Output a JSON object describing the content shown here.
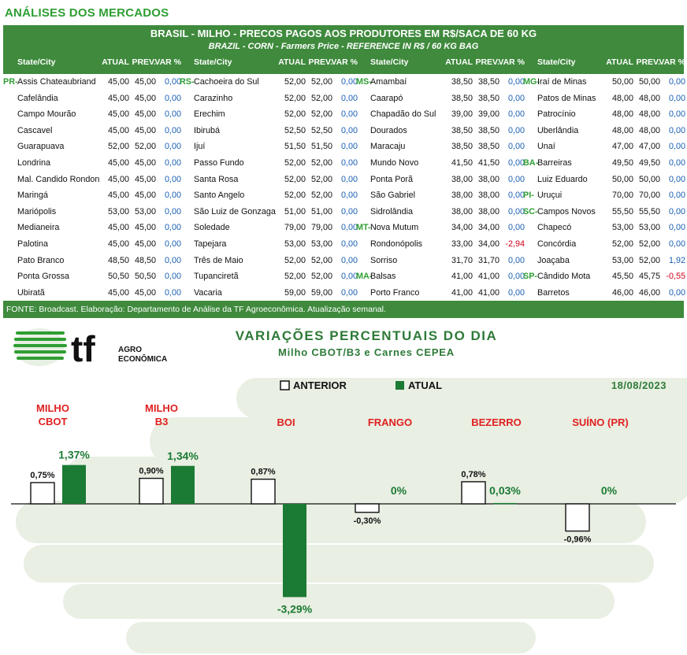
{
  "section_title": "ANÁLISES DOS MERCADOS",
  "table": {
    "title": "BRASIL - MILHO - PRECOS PAGOS AOS PRODUTORES EM R$/SACA DE 60 KG",
    "subtitle": "BRAZIL - CORN - Farmers Price - REFERENCE IN R$ / 60 KG BAG",
    "headers": {
      "city": "State/City",
      "atual": "ATUAL",
      "prev": "PREV.",
      "var": "VAR %"
    },
    "columns": [
      {
        "rows": [
          {
            "state": "PR-",
            "city": "Assis Chateaubriand",
            "atual": "45,00",
            "prev": "45,00",
            "var": "0,00"
          },
          {
            "state": "",
            "city": "Cafelândia",
            "atual": "45,00",
            "prev": "45,00",
            "var": "0,00"
          },
          {
            "state": "",
            "city": "Campo Mourão",
            "atual": "45,00",
            "prev": "45,00",
            "var": "0,00"
          },
          {
            "state": "",
            "city": "Cascavel",
            "atual": "45,00",
            "prev": "45,00",
            "var": "0,00"
          },
          {
            "state": "",
            "city": "Guarapuava",
            "atual": "52,00",
            "prev": "52,00",
            "var": "0,00"
          },
          {
            "state": "",
            "city": "Londrina",
            "atual": "45,00",
            "prev": "45,00",
            "var": "0,00"
          },
          {
            "state": "",
            "city": "Mal. Candido Rondon",
            "atual": "45,00",
            "prev": "45,00",
            "var": "0,00"
          },
          {
            "state": "",
            "city": "Maringá",
            "atual": "45,00",
            "prev": "45,00",
            "var": "0,00"
          },
          {
            "state": "",
            "city": "Mariópolis",
            "atual": "53,00",
            "prev": "53,00",
            "var": "0,00"
          },
          {
            "state": "",
            "city": "Medianeira",
            "atual": "45,00",
            "prev": "45,00",
            "var": "0,00"
          },
          {
            "state": "",
            "city": "Palotina",
            "atual": "45,00",
            "prev": "45,00",
            "var": "0,00"
          },
          {
            "state": "",
            "city": "Pato Branco",
            "atual": "48,50",
            "prev": "48,50",
            "var": "0,00"
          },
          {
            "state": "",
            "city": "Ponta Grossa",
            "atual": "50,50",
            "prev": "50,50",
            "var": "0,00"
          },
          {
            "state": "",
            "city": "Ubiratã",
            "atual": "45,00",
            "prev": "45,00",
            "var": "0,00"
          }
        ]
      },
      {
        "rows": [
          {
            "state": "RS-",
            "city": "Cachoeira do Sul",
            "atual": "52,00",
            "prev": "52,00",
            "var": "0,00"
          },
          {
            "state": "",
            "city": "Carazinho",
            "atual": "52,00",
            "prev": "52,00",
            "var": "0,00"
          },
          {
            "state": "",
            "city": "Erechim",
            "atual": "52,00",
            "prev": "52,00",
            "var": "0,00"
          },
          {
            "state": "",
            "city": "Ibirubá",
            "atual": "52,50",
            "prev": "52,50",
            "var": "0,00"
          },
          {
            "state": "",
            "city": "Ijuí",
            "atual": "51,50",
            "prev": "51,50",
            "var": "0,00"
          },
          {
            "state": "",
            "city": "Passo Fundo",
            "atual": "52,00",
            "prev": "52,00",
            "var": "0,00"
          },
          {
            "state": "",
            "city": "Santa Rosa",
            "atual": "52,00",
            "prev": "52,00",
            "var": "0,00"
          },
          {
            "state": "",
            "city": "Santo Angelo",
            "atual": "52,00",
            "prev": "52,00",
            "var": "0,00"
          },
          {
            "state": "",
            "city": "São Luiz de Gonzaga",
            "atual": "51,00",
            "prev": "51,00",
            "var": "0,00"
          },
          {
            "state": "",
            "city": "Soledade",
            "atual": "79,00",
            "prev": "79,00",
            "var": "0,00"
          },
          {
            "state": "",
            "city": "Tapejara",
            "atual": "53,00",
            "prev": "53,00",
            "var": "0,00"
          },
          {
            "state": "",
            "city": "Três de Maio",
            "atual": "52,00",
            "prev": "52,00",
            "var": "0,00"
          },
          {
            "state": "",
            "city": "Tupanciretã",
            "atual": "52,00",
            "prev": "52,00",
            "var": "0,00"
          },
          {
            "state": "",
            "city": "Vacaria",
            "atual": "59,00",
            "prev": "59,00",
            "var": "0,00"
          }
        ]
      },
      {
        "rows": [
          {
            "state": "MS-",
            "city": "Amambaí",
            "atual": "38,50",
            "prev": "38,50",
            "var": "0,00"
          },
          {
            "state": "",
            "city": "Caarapó",
            "atual": "38,50",
            "prev": "38,50",
            "var": "0,00"
          },
          {
            "state": "",
            "city": "Chapadão do Sul",
            "atual": "39,00",
            "prev": "39,00",
            "var": "0,00"
          },
          {
            "state": "",
            "city": "Dourados",
            "atual": "38,50",
            "prev": "38,50",
            "var": "0,00"
          },
          {
            "state": "",
            "city": "Maracaju",
            "atual": "38,50",
            "prev": "38,50",
            "var": "0,00"
          },
          {
            "state": "",
            "city": "Mundo Novo",
            "atual": "41,50",
            "prev": "41,50",
            "var": "0,00"
          },
          {
            "state": "",
            "city": "Ponta Porã",
            "atual": "38,00",
            "prev": "38,00",
            "var": "0,00"
          },
          {
            "state": "",
            "city": "São Gabriel",
            "atual": "38,00",
            "prev": "38,00",
            "var": "0,00"
          },
          {
            "state": "",
            "city": "Sidrolândia",
            "atual": "38,00",
            "prev": "38,00",
            "var": "0,00"
          },
          {
            "state": "MT-",
            "city": "Nova Mutum",
            "atual": "34,00",
            "prev": "34,00",
            "var": "0,00"
          },
          {
            "state": "",
            "city": "Rondonópolis",
            "atual": "33,00",
            "prev": "34,00",
            "var": "-2,94"
          },
          {
            "state": "",
            "city": "Sorriso",
            "atual": "31,70",
            "prev": "31,70",
            "var": "0,00"
          },
          {
            "state": "MA-",
            "city": "Balsas",
            "atual": "41,00",
            "prev": "41,00",
            "var": "0,00"
          },
          {
            "state": "",
            "city": "Porto Franco",
            "atual": "41,00",
            "prev": "41,00",
            "var": "0,00"
          }
        ]
      },
      {
        "rows": [
          {
            "state": "MG-",
            "city": "Iraí de Minas",
            "atual": "50,00",
            "prev": "50,00",
            "var": "0,00"
          },
          {
            "state": "",
            "city": "Patos de Minas",
            "atual": "48,00",
            "prev": "48,00",
            "var": "0,00"
          },
          {
            "state": "",
            "city": "Patrocínio",
            "atual": "48,00",
            "prev": "48,00",
            "var": "0,00"
          },
          {
            "state": "",
            "city": "Uberlândia",
            "atual": "48,00",
            "prev": "48,00",
            "var": "0,00"
          },
          {
            "state": "",
            "city": "Unaí",
            "atual": "47,00",
            "prev": "47,00",
            "var": "0,00"
          },
          {
            "state": "BA-",
            "city": "Barreiras",
            "atual": "49,50",
            "prev": "49,50",
            "var": "0,00"
          },
          {
            "state": "",
            "city": "Luiz Eduardo",
            "atual": "50,00",
            "prev": "50,00",
            "var": "0,00"
          },
          {
            "state": "PI-",
            "city": "Uruçui",
            "atual": "70,00",
            "prev": "70,00",
            "var": "0,00"
          },
          {
            "state": "SC-",
            "city": "Campos Novos",
            "atual": "55,50",
            "prev": "55,50",
            "var": "0,00"
          },
          {
            "state": "",
            "city": "Chapecó",
            "atual": "53,00",
            "prev": "53,00",
            "var": "0,00"
          },
          {
            "state": "",
            "city": "Concórdia",
            "atual": "52,00",
            "prev": "52,00",
            "var": "0,00"
          },
          {
            "state": "",
            "city": "Joaçaba",
            "atual": "53,00",
            "prev": "52,00",
            "var": "1,92"
          },
          {
            "state": "SP-",
            "city": "Cândido Mota",
            "atual": "45,50",
            "prev": "45,75",
            "var": "-0,55"
          },
          {
            "state": "",
            "city": "Barretos",
            "atual": "46,00",
            "prev": "46,00",
            "var": "0,00"
          }
        ]
      }
    ],
    "footer": "FONTE: Broadcast. Elaboração: Departamento de Análise da TF Agroeconômica. Atualização semanal."
  },
  "logo": {
    "mark": "tf",
    "line1": "AGRO",
    "line2": "ECONÔMICA"
  },
  "colors": {
    "green_dark": "#1b7a34",
    "green_header": "#3f8a3d",
    "green_text": "#2f9e33",
    "red": "#e02020",
    "blue": "#1a5fb4"
  },
  "chart_data": {
    "type": "bar",
    "title": "VARIAÇÕES PERCENTUAIS DO DIA",
    "subtitle": "Milho CBOT/B3 e Carnes CEPEA",
    "date": "18/08/2023",
    "categories": [
      "MILHO CBOT",
      "MILHO B3",
      "BOI",
      "FRANGO",
      "BEZERRO",
      "SUÍNO (PR)"
    ],
    "series": [
      {
        "name": "ANTERIOR",
        "values": [
          0.75,
          0.9,
          0.87,
          -0.3,
          0.78,
          -0.96
        ],
        "labels": [
          "0,75%",
          "0,90%",
          "0,87%",
          "-0,30%",
          "0,78%",
          "-0,96%"
        ]
      },
      {
        "name": "ATUAL",
        "values": [
          1.37,
          1.34,
          -3.29,
          0,
          0.03,
          0
        ],
        "labels": [
          "1,37%",
          "1,34%",
          "-3,29%",
          "0%",
          "0,03%",
          "0%"
        ]
      }
    ],
    "legend": "top-center",
    "grid": false
  }
}
